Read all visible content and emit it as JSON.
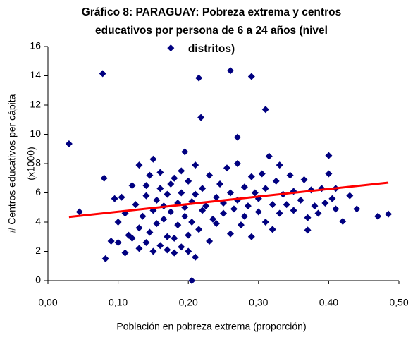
{
  "chart_data": {
    "type": "scatter",
    "title": [
      "Gráfico 8: PARAGUAY: Pobreza extrema y centros",
      "educativos por persona de 6 a 24 años (nivel",
      "distritos)"
    ],
    "xlabel": "Población en pobreza extrema (proporción)",
    "ylabel": [
      "# Centros educativos per cápita",
      "(x1000)"
    ],
    "xlim": [
      0,
      0.5
    ],
    "xticks": [
      {
        "value": 0,
        "label": "0,00"
      },
      {
        "value": 0.1,
        "label": "0,10"
      },
      {
        "value": 0.2,
        "label": "0,20"
      },
      {
        "value": 0.3,
        "label": "0,30"
      },
      {
        "value": 0.4,
        "label": "0,40"
      },
      {
        "value": 0.5,
        "label": "0,50"
      }
    ],
    "ylim": [
      0,
      16
    ],
    "yticks": [
      0,
      2,
      4,
      6,
      8,
      10,
      12,
      14,
      16
    ],
    "series": [
      {
        "color": "#000080",
        "x": [
          0.03,
          0.045,
          0.078,
          0.08,
          0.082,
          0.175,
          0.215,
          0.218,
          0.26,
          0.29,
          0.31,
          0.205,
          0.27,
          0.195,
          0.4,
          0.47,
          0.485,
          0.42,
          0.43,
          0.44,
          0.37,
          0.41,
          0.09,
          0.095,
          0.1,
          0.1,
          0.105,
          0.11,
          0.11,
          0.115,
          0.12,
          0.12,
          0.125,
          0.13,
          0.13,
          0.13,
          0.135,
          0.14,
          0.14,
          0.14,
          0.145,
          0.145,
          0.15,
          0.15,
          0.15,
          0.155,
          0.155,
          0.16,
          0.16,
          0.16,
          0.165,
          0.165,
          0.17,
          0.17,
          0.17,
          0.175,
          0.175,
          0.18,
          0.18,
          0.18,
          0.185,
          0.185,
          0.19,
          0.19,
          0.19,
          0.195,
          0.195,
          0.2,
          0.2,
          0.2,
          0.205,
          0.205,
          0.21,
          0.21,
          0.21,
          0.215,
          0.22,
          0.22,
          0.225,
          0.23,
          0.23,
          0.235,
          0.24,
          0.24,
          0.245,
          0.25,
          0.25,
          0.255,
          0.26,
          0.26,
          0.265,
          0.27,
          0.27,
          0.275,
          0.28,
          0.28,
          0.285,
          0.29,
          0.29,
          0.295,
          0.3,
          0.3,
          0.305,
          0.31,
          0.31,
          0.315,
          0.32,
          0.32,
          0.325,
          0.33,
          0.33,
          0.335,
          0.34,
          0.345,
          0.35,
          0.35,
          0.36,
          0.365,
          0.37,
          0.375,
          0.38,
          0.385,
          0.39,
          0.395,
          0.4,
          0.405,
          0.41
        ],
        "values": [
          9.35,
          4.7,
          14.15,
          7.0,
          1.5,
          15.9,
          13.85,
          11.15,
          14.35,
          13.95,
          11.7,
          0,
          9.8,
          8.8,
          8.55,
          4.4,
          4.55,
          4.05,
          5.8,
          4.9,
          3.45,
          4.9,
          2.7,
          5.6,
          2.6,
          4.0,
          5.7,
          1.9,
          4.6,
          3.1,
          6.5,
          2.9,
          5.2,
          2.2,
          3.6,
          7.9,
          4.4,
          2.6,
          5.8,
          6.5,
          7.2,
          3.3,
          8.3,
          2.0,
          4.8,
          5.5,
          3.9,
          2.4,
          6.3,
          7.4,
          4.2,
          5.1,
          2.1,
          3.0,
          5.9,
          6.6,
          4.7,
          1.9,
          2.9,
          7.0,
          3.8,
          5.3,
          2.3,
          6.0,
          7.5,
          4.4,
          5.0,
          2.0,
          3.1,
          6.8,
          5.4,
          4.0,
          1.6,
          7.9,
          5.9,
          3.5,
          4.8,
          6.3,
          5.1,
          2.7,
          7.2,
          4.2,
          5.7,
          3.9,
          6.6,
          4.6,
          5.3,
          7.7,
          3.2,
          6.0,
          4.9,
          5.5,
          8.0,
          3.8,
          6.4,
          4.4,
          5.1,
          7.1,
          3.0,
          6.0,
          4.7,
          5.6,
          7.3,
          4.0,
          6.3,
          8.5,
          5.2,
          3.5,
          6.8,
          7.9,
          4.6,
          5.9,
          5.2,
          7.2,
          4.8,
          6.1,
          5.5,
          6.9,
          4.3,
          6.2,
          5.1,
          4.6,
          6.3,
          5.3,
          7.3,
          5.6,
          6.3
        ]
      },
      {
        "type": "line",
        "color": "#ff0000",
        "x": [
          0.03,
          0.485
        ],
        "values": [
          4.35,
          6.7
        ]
      }
    ]
  }
}
